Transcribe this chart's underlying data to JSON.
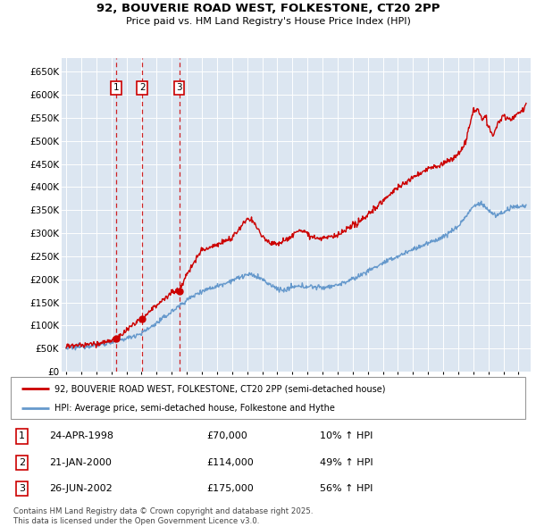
{
  "title": "92, BOUVERIE ROAD WEST, FOLKESTONE, CT20 2PP",
  "subtitle": "Price paid vs. HM Land Registry's House Price Index (HPI)",
  "hpi_label": "HPI: Average price, semi-detached house, Folkestone and Hythe",
  "property_label": "92, BOUVERIE ROAD WEST, FOLKESTONE, CT20 2PP (semi-detached house)",
  "transactions": [
    {
      "num": 1,
      "date": "24-APR-1998",
      "price": 70000,
      "hpi_rel": "10% ↑ HPI",
      "date_val": 1998.31
    },
    {
      "num": 2,
      "date": "21-JAN-2000",
      "price": 114000,
      "hpi_rel": "49% ↑ HPI",
      "date_val": 2000.05
    },
    {
      "num": 3,
      "date": "26-JUN-2002",
      "price": 175000,
      "hpi_rel": "56% ↑ HPI",
      "date_val": 2002.49
    }
  ],
  "property_color": "#cc0000",
  "hpi_color": "#6699cc",
  "grid_color": "#ffffff",
  "plot_bg_color": "#dce6f1",
  "ylim": [
    0,
    680000
  ],
  "yticks": [
    0,
    50000,
    100000,
    150000,
    200000,
    250000,
    300000,
    350000,
    400000,
    450000,
    500000,
    550000,
    600000,
    650000
  ],
  "xlim_start": 1994.7,
  "xlim_end": 2025.8,
  "footer": "Contains HM Land Registry data © Crown copyright and database right 2025.\nThis data is licensed under the Open Government Licence v3.0."
}
